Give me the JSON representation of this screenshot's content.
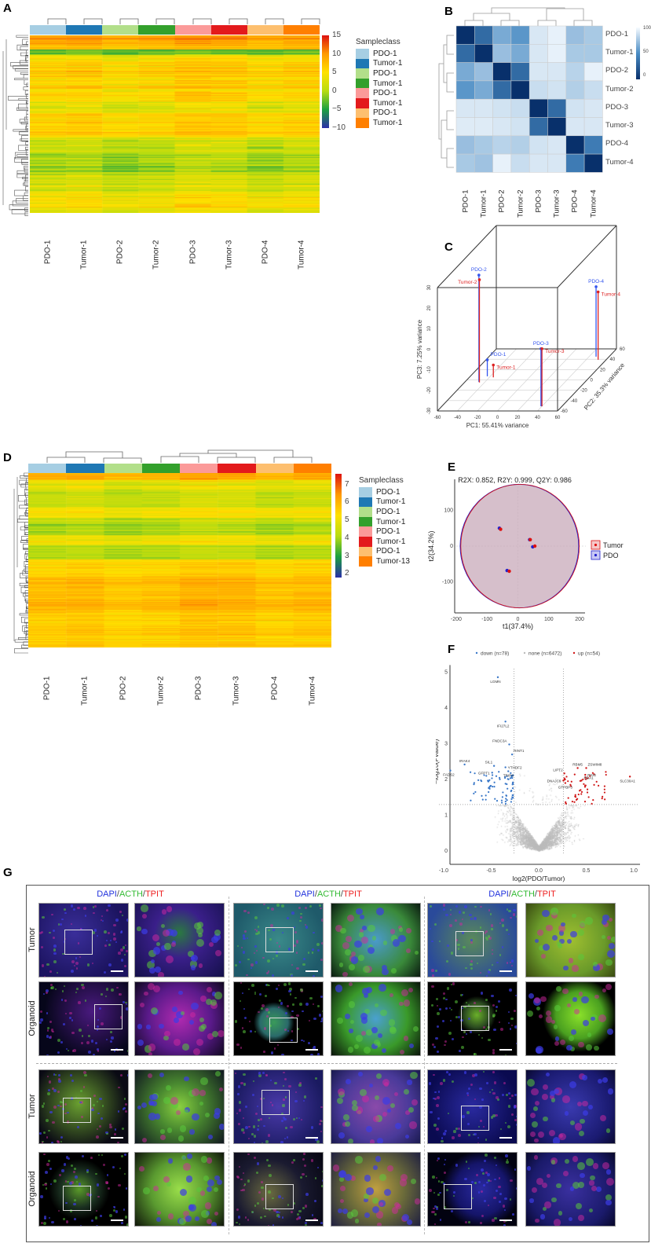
{
  "panels": {
    "A": "A",
    "B": "B",
    "C": "C",
    "D": "D",
    "E": "E",
    "F": "F",
    "G": "G"
  },
  "chart_data": [
    {
      "id": "A",
      "type": "heatmap",
      "columns": [
        "PDO-1",
        "Tumor-1",
        "PDO-2",
        "Tumor-2",
        "PDO-3",
        "Tumor-3",
        "PDO-4",
        "Tumor-4"
      ],
      "column_annotation_colors": [
        "#a6cee3",
        "#1f78b4",
        "#b2df8a",
        "#33a02c",
        "#fb9a99",
        "#e31a1c",
        "#fdbf6f",
        "#ff7f00"
      ],
      "colorbar": {
        "ticks": [
          "15",
          "10",
          "5",
          "0",
          "−5",
          "−10"
        ],
        "range": [
          -10,
          15
        ],
        "colors": [
          "#2b2fa8",
          "#1aa040",
          "#b8dc10",
          "#ffe100",
          "#ff9900",
          "#dd1111"
        ]
      },
      "legend": {
        "title": "Sampleclass",
        "entries": [
          "PDO-1",
          "Tumor-1",
          "PDO-1",
          "Tumor-1",
          "PDO-1",
          "Tumor-1",
          "PDO-1",
          "Tumor-1"
        ]
      },
      "row_dendrogram": true,
      "column_dendrogram": true
    },
    {
      "id": "B",
      "type": "heatmap",
      "rows": [
        "PDO-1",
        "Tumor-1",
        "PDO-2",
        "Tumor-2",
        "PDO-3",
        "Tumor-3",
        "PDO-4",
        "Tumor-4"
      ],
      "columns": [
        "PDO-1",
        "Tumor-1",
        "PDO-2",
        "Tumor-2",
        "PDO-3",
        "Tumor-3",
        "PDO-4",
        "Tumor-4"
      ],
      "values": [
        [
          0,
          35,
          70,
          60,
          100,
          105,
          80,
          85
        ],
        [
          35,
          0,
          80,
          70,
          100,
          105,
          85,
          85
        ],
        [
          70,
          80,
          0,
          35,
          100,
          100,
          90,
          105
        ],
        [
          60,
          70,
          35,
          0,
          95,
          98,
          88,
          95
        ],
        [
          100,
          100,
          98,
          95,
          0,
          35,
          98,
          100
        ],
        [
          102,
          102,
          100,
          98,
          35,
          0,
          100,
          100
        ],
        [
          80,
          85,
          90,
          88,
          98,
          100,
          0,
          45
        ],
        [
          85,
          82,
          105,
          95,
          100,
          100,
          45,
          0
        ]
      ],
      "colorbar": {
        "ticks": [
          "100",
          "50",
          "0"
        ],
        "range": [
          0,
          110
        ],
        "colors": [
          "#08306b",
          "#4a8cc4",
          "#f7fbff"
        ]
      }
    },
    {
      "id": "C",
      "type": "scatter3d",
      "xlabel": "PC1: 55.41%  variance",
      "ylabel": "PC2: 35.3% variance",
      "zlabel": "PC3: 7.25%  variance",
      "xlim": [
        -60,
        60
      ],
      "ylim": [
        -60,
        60
      ],
      "zlim": [
        -30,
        30
      ],
      "x_ticks": [
        "-60",
        "-40",
        "-20",
        "0",
        "20",
        "40",
        "60"
      ],
      "y_ticks": [
        "-60",
        "-40",
        "-20",
        "0",
        "20",
        "40",
        "60"
      ],
      "z_ticks": [
        "-30",
        "-20",
        "-10",
        "0",
        "10",
        "20",
        "30"
      ],
      "points": [
        {
          "label": "PDO-1",
          "group": "PDO",
          "x": -43,
          "y": 7,
          "z": -22
        },
        {
          "label": "Tumor-1",
          "group": "Tumor",
          "x": -36,
          "y": 5,
          "z": -24
        },
        {
          "label": "PDO-2",
          "group": "PDO",
          "x": -46,
          "y": -4,
          "z": 22
        },
        {
          "label": "Tumor-2",
          "group": "Tumor",
          "x": -45,
          "y": -5,
          "z": 20
        },
        {
          "label": "PDO-3",
          "group": "PDO",
          "x": 39,
          "y": -51,
          "z": -2
        },
        {
          "label": "Tumor-3",
          "group": "Tumor",
          "x": 40,
          "y": -51,
          "z": -2
        },
        {
          "label": "PDO-4",
          "group": "PDO",
          "x": 47,
          "y": 45,
          "z": 4
        },
        {
          "label": "Tumor-4",
          "group": "Tumor",
          "x": 52,
          "y": 39,
          "z": 3
        }
      ],
      "colors": {
        "PDO": "#3355ee",
        "Tumor": "#dd2222"
      }
    },
    {
      "id": "D",
      "type": "heatmap",
      "columns": [
        "PDO-1",
        "Tumor-1",
        "PDO-2",
        "Tumor-2",
        "PDO-3",
        "Tumor-3",
        "PDO-4",
        "Tumor-4"
      ],
      "column_annotation_colors": [
        "#a6cee3",
        "#1f78b4",
        "#b2df8a",
        "#33a02c",
        "#fb9a99",
        "#e31a1c",
        "#fdbf6f",
        "#ff7f00"
      ],
      "colorbar": {
        "ticks": [
          "7",
          "6",
          "5",
          "4",
          "3",
          "2"
        ],
        "range": [
          1.8,
          7.6
        ],
        "colors": [
          "#2b2fa8",
          "#1aa040",
          "#b8dc10",
          "#ffe100",
          "#ff9900",
          "#dd1111"
        ]
      },
      "legend": {
        "title": "Sampleclass",
        "entries": [
          "PDO-1",
          "Tumor-1",
          "PDO-1",
          "Tumor-1",
          "PDO-1",
          "Tumor-1",
          "PDO-1",
          "Tumor-13"
        ]
      },
      "row_dendrogram": true,
      "column_dendrogram": true
    },
    {
      "id": "E",
      "type": "scatter",
      "title": "R2X: 0.852, R2Y: 0.999, Q2Y: 0.986",
      "xlabel": "t1(37.4%)",
      "ylabel": "t2(34.2%)",
      "xlim": [
        -200,
        200
      ],
      "ylim": [
        -170,
        170
      ],
      "x_ticks": [
        "-200",
        "-100",
        "0",
        "100",
        "200"
      ],
      "y_ticks": [
        "100",
        "0",
        "-100"
      ],
      "series": [
        {
          "name": "Tumor",
          "color": "#dd1111",
          "points": [
            [
              -56,
              47
            ],
            [
              -28,
              -70
            ],
            [
              40,
              18
            ],
            [
              55,
              0
            ]
          ]
        },
        {
          "name": "PDO",
          "color": "#2222cc",
          "points": [
            [
              -60,
              50
            ],
            [
              -35,
              -68
            ],
            [
              38,
              18
            ],
            [
              48,
              -2
            ]
          ]
        }
      ],
      "ellipse": {
        "center": [
          5,
          0
        ],
        "rx": 192,
        "ry": 172
      },
      "legend_position": "right"
    },
    {
      "id": "F",
      "type": "scatter",
      "xlabel": "log2(PDO/Tumor)",
      "ylabel": "−log10(Pvalue)",
      "xlim": [
        -1.05,
        1.05
      ],
      "ylim": [
        0,
        5.1
      ],
      "x_ticks": [
        "-1.0",
        "-0.5",
        "0.0",
        "0.5",
        "1.0"
      ],
      "y_ticks": [
        "0",
        "1",
        "2",
        "3",
        "4",
        "5"
      ],
      "thresholds": {
        "log2fc": [
          -0.26,
          0.26
        ],
        "neg_log10_p": 1.3
      },
      "legend": [
        {
          "name": "down (n=78)",
          "color": "#3a78c8",
          "n": 78
        },
        {
          "name": "none (n=6472)",
          "color": "#bbbbbb",
          "n": 6472
        },
        {
          "name": "up (n=54)",
          "color": "#d01818",
          "n": 54
        }
      ],
      "legend_position": "top",
      "labeled_genes": [
        {
          "gene": "LGMN",
          "x": -0.43,
          "y": 4.86
        },
        {
          "gene": "IFI27L2",
          "x": -0.35,
          "y": 3.62
        },
        {
          "gene": "FNDC3A",
          "x": -0.31,
          "y": 2.98
        },
        {
          "gene": "RINT1",
          "x": -0.28,
          "y": 2.7
        },
        {
          "gene": "IRAK4",
          "x": -0.78,
          "y": 2.42
        },
        {
          "gene": "SIL1",
          "x": -0.47,
          "y": 2.38
        },
        {
          "gene": "YTHDF2",
          "x": -0.35,
          "y": 2.34
        },
        {
          "gene": "GFPT1",
          "x": -0.49,
          "y": 2.19
        },
        {
          "gene": "TRIP4",
          "x": -0.32,
          "y": 2.23
        },
        {
          "gene": "FADS2",
          "x": -0.93,
          "y": 2.25
        },
        {
          "gene": "LIPT2",
          "x": 0.27,
          "y": 2.17
        },
        {
          "gene": "RBM5",
          "x": 0.41,
          "y": 2.32
        },
        {
          "gene": "ZSWIM8",
          "x": 0.5,
          "y": 2.32
        },
        {
          "gene": "PKIG",
          "x": 0.49,
          "y": 2.13
        },
        {
          "gene": "DNAJC9",
          "x": 0.26,
          "y": 1.97
        },
        {
          "gene": "DDA1",
          "x": 0.45,
          "y": 1.97
        },
        {
          "gene": "GTPBP3",
          "x": 0.28,
          "y": 1.9
        },
        {
          "gene": "SLC30A1",
          "x": 0.96,
          "y": 2.08
        }
      ]
    }
  ],
  "panel_g": {
    "stain_header": {
      "dapi": "DAPI",
      "sep1": "/",
      "acth": "ACTH",
      "sep2": "/",
      "tpit": "TPIT"
    },
    "stain_colors": {
      "dapi": "#2233dd",
      "acth": "#33bb33",
      "tpit": "#ee2222"
    },
    "row_labels": [
      "Tumor",
      "Organoid",
      "Tumor",
      "Organoid"
    ]
  }
}
